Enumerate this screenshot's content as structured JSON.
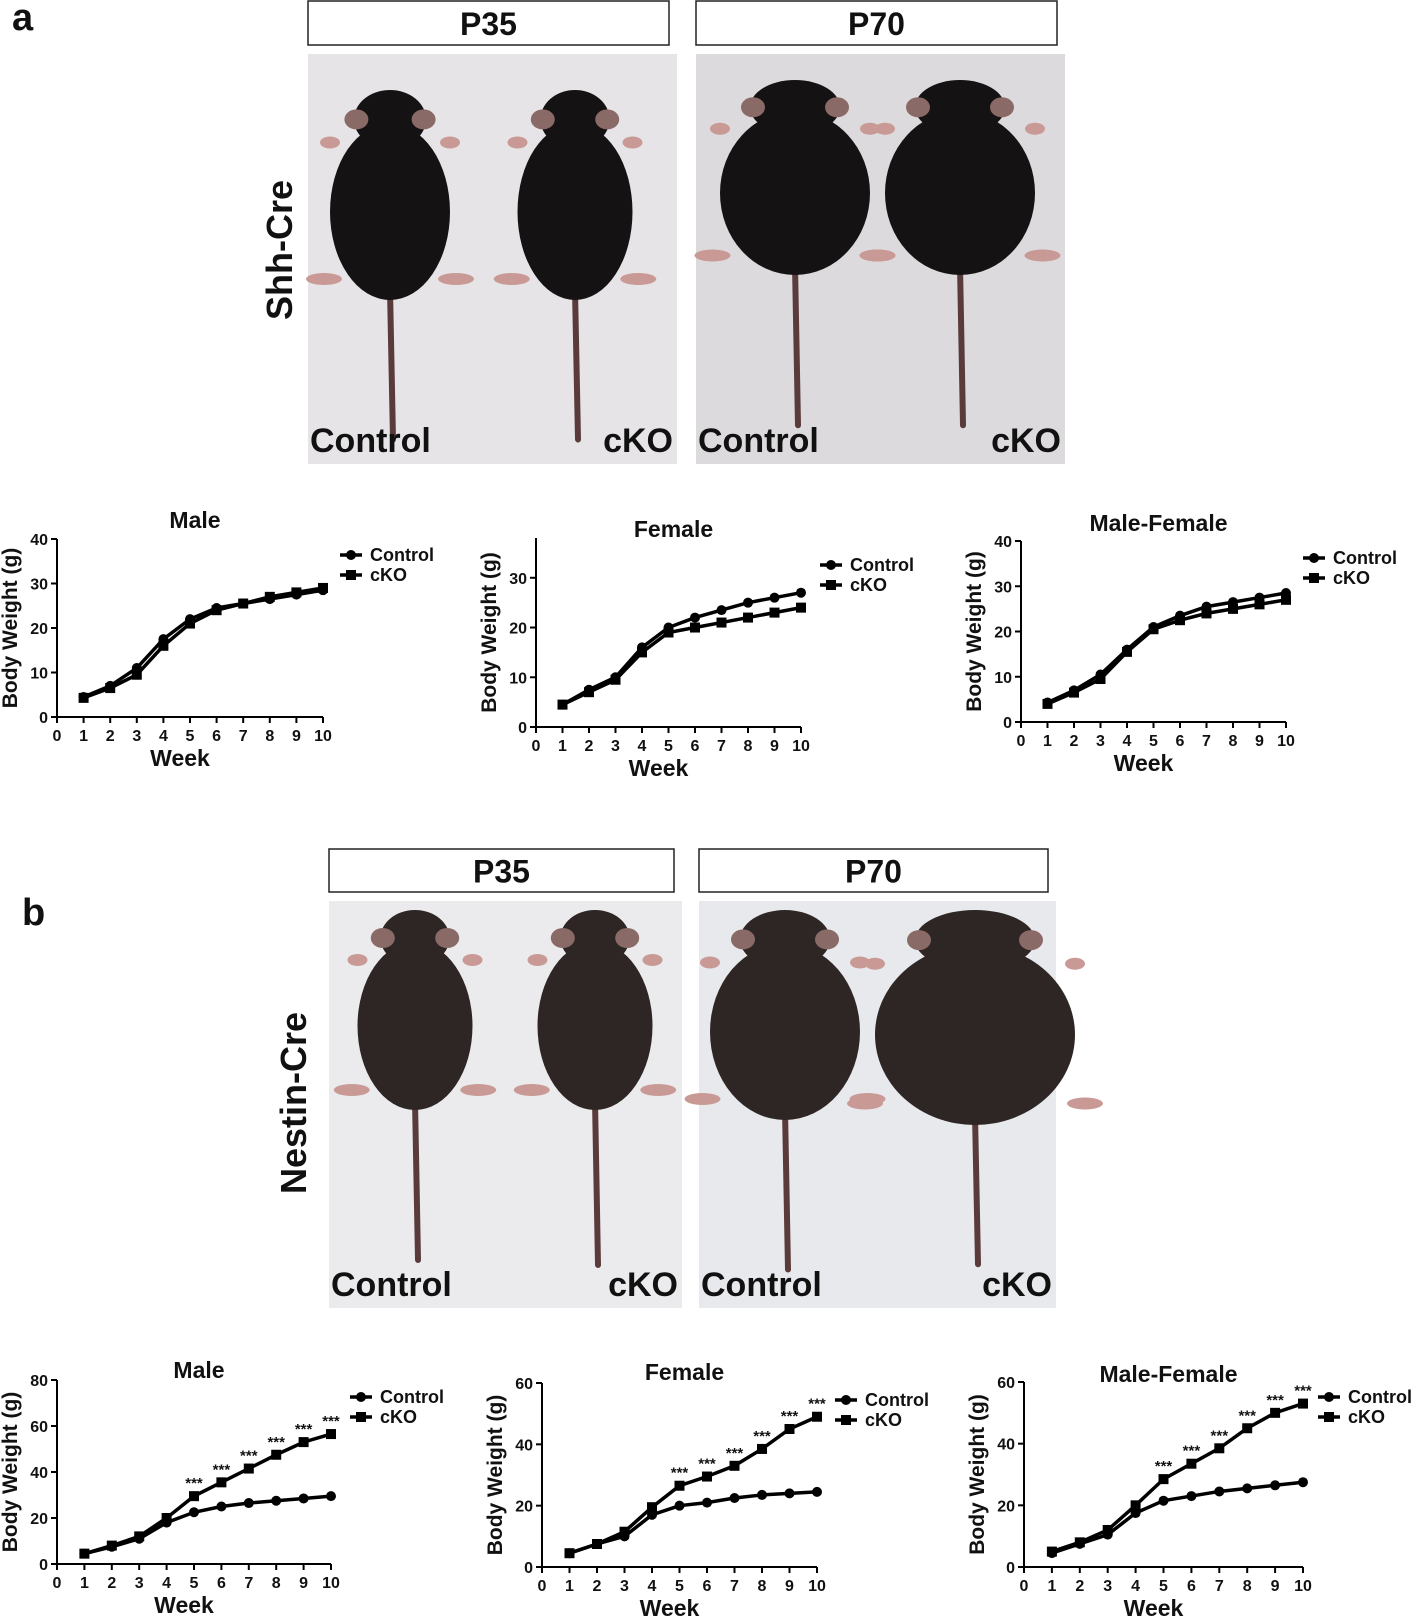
{
  "panels": [
    {
      "label": "a",
      "driver": "Shh-Cre",
      "stages": [
        "P35",
        "P70"
      ],
      "photo_labels": [
        [
          "Control",
          "cKO"
        ],
        [
          "Control",
          "cKO"
        ]
      ]
    },
    {
      "label": "b",
      "driver": "Nestin-Cre",
      "stages": [
        "P35",
        "P70"
      ],
      "photo_labels": [
        [
          "Control",
          "cKO"
        ],
        [
          "Control",
          "cKO"
        ]
      ]
    }
  ],
  "chart_data": [
    {
      "type": "line",
      "title": "Male",
      "x_label": "Week",
      "y_label": "Body Weight (g)",
      "x": [
        1,
        2,
        3,
        4,
        5,
        6,
        7,
        8,
        9,
        10
      ],
      "xlim": [
        0,
        10
      ],
      "xticks": [
        0,
        1,
        2,
        3,
        4,
        5,
        6,
        7,
        8,
        9,
        10
      ],
      "ylim": [
        0,
        40
      ],
      "yticks": [
        0,
        10,
        20,
        30,
        40
      ],
      "series": [
        {
          "name": "Control",
          "color": "#000000",
          "marker": "circle",
          "values": [
            4.5,
            7,
            11,
            17.5,
            22,
            24.5,
            25.5,
            26.5,
            27.5,
            28.5
          ]
        },
        {
          "name": "cKO",
          "color": "#000000",
          "marker": "square",
          "values": [
            4.3,
            6.5,
            9.5,
            16,
            21,
            24,
            25.5,
            27,
            28,
            29
          ]
        }
      ]
    },
    {
      "type": "line",
      "title": "Female",
      "x_label": "Week",
      "y_label": "Body Weight (g)",
      "x": [
        1,
        2,
        3,
        4,
        5,
        6,
        7,
        8,
        9,
        10
      ],
      "xlim": [
        0,
        10
      ],
      "xticks": [
        0,
        1,
        2,
        3,
        4,
        5,
        6,
        7,
        8,
        9,
        10
      ],
      "ylim": [
        0,
        38
      ],
      "yticks": [
        0,
        10,
        20,
        30
      ],
      "series": [
        {
          "name": "Control",
          "color": "#000000",
          "marker": "circle",
          "values": [
            4.5,
            7.5,
            10,
            16,
            20,
            22,
            23.5,
            25,
            26,
            27
          ]
        },
        {
          "name": "cKO",
          "color": "#000000",
          "marker": "square",
          "values": [
            4.5,
            7,
            9.5,
            15,
            19,
            20,
            21,
            22,
            23,
            24
          ]
        }
      ]
    },
    {
      "type": "line",
      "title": "Male-Female",
      "x_label": "Week",
      "y_label": "Body Weight (g)",
      "x": [
        1,
        2,
        3,
        4,
        5,
        6,
        7,
        8,
        9,
        10
      ],
      "xlim": [
        0,
        10
      ],
      "xticks": [
        0,
        1,
        2,
        3,
        4,
        5,
        6,
        7,
        8,
        9,
        10
      ],
      "ylim": [
        0,
        40
      ],
      "yticks": [
        0,
        10,
        20,
        30,
        40
      ],
      "series": [
        {
          "name": "Control",
          "color": "#000000",
          "marker": "circle",
          "values": [
            4.3,
            7,
            10.5,
            16,
            21,
            23.5,
            25.5,
            26.5,
            27.5,
            28.5
          ]
        },
        {
          "name": "cKO",
          "color": "#000000",
          "marker": "square",
          "values": [
            4,
            6.5,
            9.5,
            15.5,
            20.5,
            22.5,
            24,
            25,
            26,
            27
          ]
        }
      ]
    },
    {
      "type": "line",
      "title": "Male",
      "x_label": "Week",
      "y_label": "Body Weight (g)",
      "x": [
        1,
        2,
        3,
        4,
        5,
        6,
        7,
        8,
        9,
        10
      ],
      "xlim": [
        0,
        10
      ],
      "xticks": [
        0,
        1,
        2,
        3,
        4,
        5,
        6,
        7,
        8,
        9,
        10
      ],
      "ylim": [
        0,
        80
      ],
      "yticks": [
        0,
        20,
        40,
        60,
        80
      ],
      "series": [
        {
          "name": "Control",
          "color": "#000000",
          "marker": "circle",
          "values": [
            4.5,
            7.5,
            11,
            18,
            22.5,
            25,
            26.5,
            27.5,
            28.5,
            29.5
          ]
        },
        {
          "name": "cKO",
          "color": "#000000",
          "marker": "square",
          "values": [
            4.5,
            8,
            12,
            20,
            29.5,
            35.5,
            41.5,
            47.5,
            53,
            56.5
          ]
        }
      ],
      "significance": [
        null,
        null,
        null,
        null,
        "***",
        "***",
        "***",
        "***",
        "***",
        "***"
      ]
    },
    {
      "type": "line",
      "title": "Female",
      "x_label": "Week",
      "y_label": "Body Weight (g)",
      "x": [
        1,
        2,
        3,
        4,
        5,
        6,
        7,
        8,
        9,
        10
      ],
      "xlim": [
        0,
        10
      ],
      "xticks": [
        0,
        1,
        2,
        3,
        4,
        5,
        6,
        7,
        8,
        9,
        10
      ],
      "ylim": [
        0,
        60
      ],
      "yticks": [
        0,
        20,
        40,
        60
      ],
      "series": [
        {
          "name": "Control",
          "color": "#000000",
          "marker": "circle",
          "values": [
            4.5,
            7.5,
            10,
            17,
            20,
            21,
            22.5,
            23.5,
            24,
            24.5
          ]
        },
        {
          "name": "cKO",
          "color": "#000000",
          "marker": "square",
          "values": [
            4.5,
            7.5,
            11.5,
            19.5,
            26.5,
            29.5,
            33,
            38.5,
            45,
            49
          ]
        }
      ],
      "significance": [
        null,
        null,
        null,
        null,
        "***",
        "***",
        "***",
        "***",
        "***",
        "***"
      ]
    },
    {
      "type": "line",
      "title": "Male-Female",
      "x_label": "Week",
      "y_label": "Body Weight (g)",
      "x": [
        1,
        2,
        3,
        4,
        5,
        6,
        7,
        8,
        9,
        10
      ],
      "xlim": [
        0,
        10
      ],
      "xticks": [
        0,
        1,
        2,
        3,
        4,
        5,
        6,
        7,
        8,
        9,
        10
      ],
      "ylim": [
        0,
        60
      ],
      "yticks": [
        0,
        20,
        40,
        60
      ],
      "series": [
        {
          "name": "Control",
          "color": "#000000",
          "marker": "circle",
          "values": [
            4.5,
            7.5,
            10.5,
            17.5,
            21.5,
            23,
            24.5,
            25.5,
            26.5,
            27.5
          ]
        },
        {
          "name": "cKO",
          "color": "#000000",
          "marker": "square",
          "values": [
            5,
            8,
            12,
            20,
            28.5,
            33.5,
            38.5,
            45,
            50,
            53
          ]
        }
      ],
      "significance": [
        null,
        null,
        null,
        null,
        "***",
        "***",
        "***",
        "***",
        "***",
        "***"
      ]
    }
  ]
}
